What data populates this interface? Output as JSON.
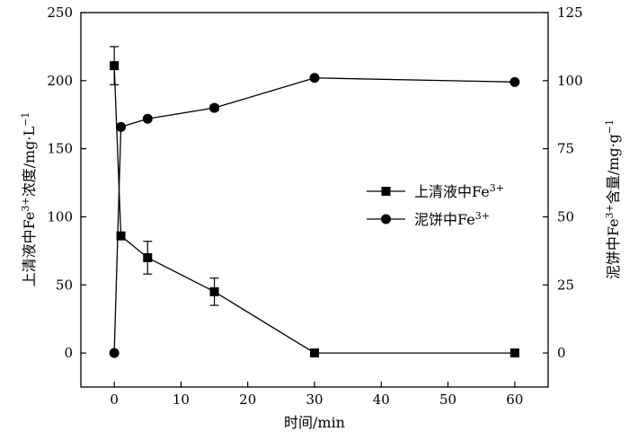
{
  "chart_data": {
    "type": "scatter",
    "xlabel": "时间/min",
    "ylabel_left_prefix": "上清液中Fe",
    "ylabel_left_sup": "3+",
    "ylabel_left_suffix": "浓度/mg·L",
    "ylabel_left_unit_sup": "−1",
    "ylabel_right_prefix": "泥饼中Fe",
    "ylabel_right_sup": "3+",
    "ylabel_right_suffix": "含量/mg·g",
    "ylabel_right_unit_sup": "−1",
    "xlim": [
      -5,
      65
    ],
    "ylim_left": [
      -25,
      250
    ],
    "ylim_right": [
      -12.5,
      125
    ],
    "xticks": [
      0,
      10,
      20,
      30,
      40,
      50,
      60
    ],
    "yticks_left": [
      0,
      50,
      100,
      150,
      200,
      250
    ],
    "yticks_right": [
      0,
      25,
      50,
      75,
      100,
      125
    ],
    "legend_position": "right-middle",
    "series": [
      {
        "name": "上清液中Fe",
        "name_sup": "3+",
        "axis": "left",
        "marker": "square",
        "x": [
          0,
          1,
          5,
          15,
          30,
          60
        ],
        "y": [
          211,
          86,
          70,
          45,
          0,
          0
        ],
        "yerr": [
          14,
          0,
          12,
          10,
          0,
          0
        ]
      },
      {
        "name": "泥饼中Fe",
        "name_sup": "3+",
        "axis": "right",
        "marker": "circle",
        "x": [
          0,
          1,
          5,
          15,
          30,
          60
        ],
        "y": [
          0,
          83,
          86,
          90,
          101,
          99.5
        ],
        "yerr": [
          0,
          0,
          0,
          1,
          0,
          0
        ]
      }
    ]
  }
}
